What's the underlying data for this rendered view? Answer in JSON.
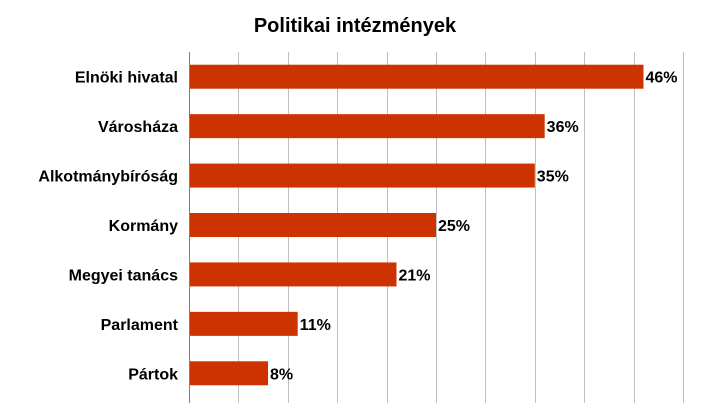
{
  "chart_data": {
    "type": "bar",
    "orientation": "horizontal",
    "title": "Politikai intézmények",
    "xlabel": "",
    "ylabel": "",
    "categories": [
      "Elnöki hivatal",
      "Városháza",
      "Alkotmánybíróság",
      "Kormány",
      "Megyei tanács",
      "Parlament",
      "Pártok"
    ],
    "values": [
      46,
      36,
      35,
      25,
      21,
      11,
      8
    ],
    "value_labels": [
      "46%",
      "36%",
      "35%",
      "25%",
      "21%",
      "11%",
      "8%"
    ],
    "xlim": [
      0,
      50
    ],
    "grid": true,
    "bar_color": "#cc3300",
    "grid_color": "#c0c0c0"
  }
}
